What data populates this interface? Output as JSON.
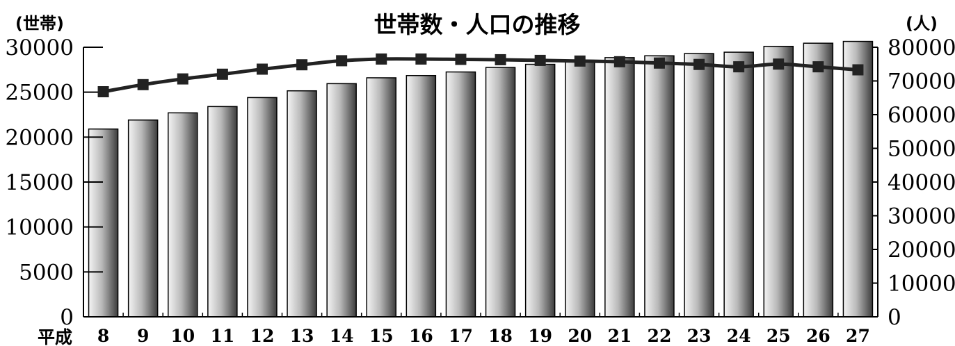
{
  "chart_data": {
    "type": "bar",
    "title": "世帯数・人口の推移",
    "x_prefix": "平成",
    "left_axis_unit": "(世帯)",
    "right_axis_unit": "(人)",
    "categories": [
      "8",
      "9",
      "10",
      "11",
      "12",
      "13",
      "14",
      "15",
      "16",
      "17",
      "18",
      "19",
      "20",
      "21",
      "22",
      "23",
      "24",
      "25",
      "26",
      "27"
    ],
    "left_ylim": [
      0,
      30000
    ],
    "left_ticks": [
      "0",
      "5000",
      "10000",
      "15000",
      "20000",
      "25000",
      "30000"
    ],
    "right_ylim": [
      0,
      80000
    ],
    "right_ticks": [
      "0",
      "10000",
      "20000",
      "30000",
      "40000",
      "50000",
      "60000",
      "70000",
      "80000"
    ],
    "series": [
      {
        "type": "bar",
        "axis": "left",
        "values": [
          20900,
          21900,
          22700,
          23400,
          24400,
          25150,
          25950,
          26600,
          26850,
          27250,
          27750,
          28100,
          28350,
          28850,
          29050,
          29300,
          29450,
          30100,
          30450,
          30650
        ]
      },
      {
        "type": "line",
        "axis": "right",
        "values": [
          66800,
          68900,
          70600,
          72000,
          73500,
          74800,
          76000,
          76500,
          76500,
          76400,
          76300,
          76100,
          75900,
          75700,
          75300,
          74900,
          74200,
          75000,
          74200,
          73300
        ]
      }
    ],
    "colors": {
      "bar_dark": "#4a4a4a",
      "bar_light": "#f2f2f2",
      "line": "#222222"
    }
  }
}
